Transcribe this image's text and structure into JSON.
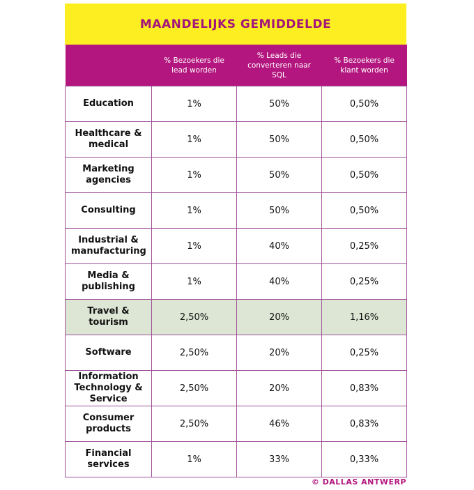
{
  "header": {
    "title": "MAANDELIJKS GEMIDDELDE"
  },
  "table": {
    "columns": [
      "% Bezoekers die lead worden",
      "% Leads die converteren naar SQL",
      "% Bezoekers die klant worden"
    ],
    "rows": [
      [
        "Education",
        "1%",
        "50%",
        "0,50%"
      ],
      [
        "Healthcare & medical",
        "1%",
        "50%",
        "0,50%"
      ],
      [
        "Marketing agencies",
        "1%",
        "50%",
        "0,50%"
      ],
      [
        "Consulting",
        "1%",
        "50%",
        "0,50%"
      ],
      [
        "Industrial & manufacturing",
        "1%",
        "40%",
        "0,25%"
      ],
      [
        "Media & publishing",
        "1%",
        "40%",
        "0,25%"
      ],
      [
        "Travel & tourism",
        "2,50%",
        "20%",
        "1,16%"
      ],
      [
        "Software",
        "2,50%",
        "20%",
        "0,25%"
      ],
      [
        "Information Technology & Service",
        "2,50%",
        "20%",
        "0,83%"
      ],
      [
        "Consumer products",
        "2,50%",
        "46%",
        "0,83%"
      ],
      [
        "Financial services",
        "1%",
        "33%",
        "0,33%"
      ]
    ]
  },
  "footer": {
    "credit": "© DALLAS ANTWERP"
  }
}
